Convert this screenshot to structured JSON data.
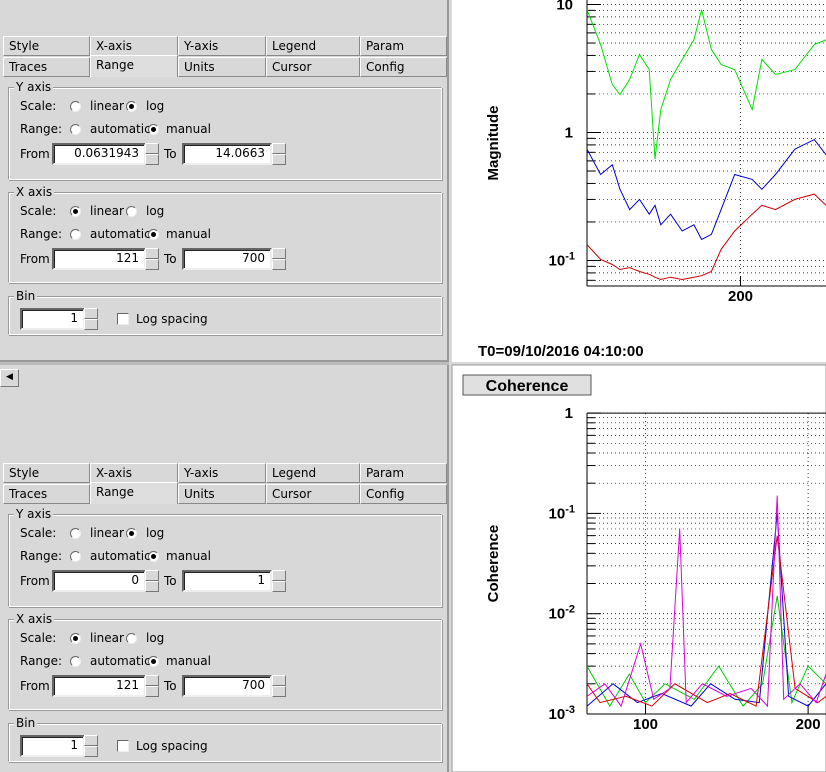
{
  "panels": [
    {
      "tabs": [
        [
          "Style",
          "X-axis",
          "Y-axis",
          "Legend",
          "Param"
        ],
        [
          "Traces",
          "Range",
          "Units",
          "Cursor",
          "Config"
        ]
      ],
      "selected_tab": [
        1,
        1
      ],
      "y_axis": {
        "title": "Y axis",
        "scale_label": "Scale:",
        "scale_options": [
          "linear",
          "log"
        ],
        "scale_checked": 1,
        "range_label": "Range:",
        "range_options": [
          "automatic",
          "manual"
        ],
        "range_checked": 1,
        "from_label": "From",
        "from": 0.0631943,
        "to_label": "To",
        "to": 14.0663
      },
      "x_axis": {
        "title": "X axis",
        "scale_label": "Scale:",
        "scale_options": [
          "linear",
          "log"
        ],
        "scale_checked": 0,
        "range_label": "Range:",
        "range_options": [
          "automatic",
          "manual"
        ],
        "range_checked": 1,
        "from_label": "From",
        "from": 121,
        "to_label": "To",
        "to": 700
      },
      "bin": {
        "title": "Bin",
        "value": 1,
        "log_spacing": "Log spacing"
      }
    },
    {
      "tabs": [
        [
          "Style",
          "X-axis",
          "Y-axis",
          "Legend",
          "Param"
        ],
        [
          "Traces",
          "Range",
          "Units",
          "Cursor",
          "Config"
        ]
      ],
      "selected_tab": [
        1,
        1
      ],
      "y_axis": {
        "title": "Y axis",
        "scale_label": "Scale:",
        "scale_options": [
          "linear",
          "log"
        ],
        "scale_checked": 1,
        "range_label": "Range:",
        "range_options": [
          "automatic",
          "manual"
        ],
        "range_checked": 1,
        "from_label": "From",
        "from": 0,
        "to_label": "To",
        "to": 1
      },
      "x_axis": {
        "title": "X axis",
        "scale_label": "Scale:",
        "scale_options": [
          "linear",
          "log"
        ],
        "scale_checked": 0,
        "range_label": "Range:",
        "range_options": [
          "automatic",
          "manual"
        ],
        "range_checked": 1,
        "from_label": "From",
        "from": 121,
        "to_label": "To",
        "to": 700
      },
      "bin": {
        "title": "Bin",
        "value": 1,
        "log_spacing": "Log spacing"
      }
    }
  ],
  "plots": [
    {
      "type": "line",
      "ylabel": "Magnitude",
      "footer": "T0=09/10/2016 04:10:00",
      "log_y": true,
      "grid": true,
      "xlim": [
        121,
        244
      ],
      "ylim": [
        0.0631943,
        14.0663
      ],
      "xticks": [
        200
      ],
      "yticks": [
        {
          "value": 10,
          "label": "10"
        },
        {
          "value": 1,
          "label": "1"
        },
        {
          "value": 0.1,
          "label": "10",
          "exponent": "-1"
        }
      ],
      "x": [
        121,
        128,
        134,
        138,
        143,
        148,
        153,
        156,
        159,
        164,
        170,
        176,
        180,
        185,
        190,
        197,
        206,
        211,
        218,
        228,
        238,
        244
      ],
      "series": [
        {
          "color": "#00e000",
          "values": [
            9.1,
            4.87,
            2.37,
            1.98,
            2.6,
            4.07,
            3.1,
            0.62,
            1.51,
            2.6,
            3.72,
            5.3,
            9.1,
            4.45,
            3.4,
            3.1,
            1.51,
            3.72,
            2.84,
            3.1,
            4.87,
            5.3
          ]
        },
        {
          "color": "#0000cc",
          "values": [
            0.74,
            0.47,
            0.56,
            0.36,
            0.25,
            0.3,
            0.23,
            0.27,
            0.19,
            0.23,
            0.17,
            0.19,
            0.146,
            0.16,
            0.25,
            0.47,
            0.43,
            0.36,
            0.47,
            0.74,
            0.88,
            0.67
          ]
        },
        {
          "color": "#cc0000",
          "values": [
            0.133,
            0.102,
            0.093,
            0.085,
            0.088,
            0.082,
            0.078,
            0.074,
            0.071,
            0.074,
            0.071,
            0.074,
            0.076,
            0.082,
            0.122,
            0.17,
            0.23,
            0.27,
            0.25,
            0.3,
            0.33,
            0.27
          ]
        }
      ]
    },
    {
      "type": "scatter-line",
      "title": "Coherence",
      "ylabel": "Coherence",
      "log_y": true,
      "grid": true,
      "xlim": [
        64,
        211
      ],
      "ylim": [
        0.001,
        1
      ],
      "xticks": [
        100,
        200
      ],
      "yticks": [
        {
          "value": 1,
          "label": "1"
        },
        {
          "value": 0.1,
          "label": "10",
          "exponent": "-1"
        },
        {
          "value": 0.01,
          "label": "10",
          "exponent": "-2"
        },
        {
          "value": 0.001,
          "label": "10",
          "exponent": "-3"
        }
      ],
      "series": [
        {
          "color": "#00cc00",
          "x": [
            64,
            78,
            90,
            100,
            112,
            130,
            145,
            160,
            172,
            181,
            190,
            200,
            211
          ],
          "values": [
            0.003,
            0.0012,
            0.0025,
            0.0013,
            0.002,
            0.0014,
            0.003,
            0.0012,
            0.002,
            0.015,
            0.0013,
            0.003,
            0.002
          ]
        },
        {
          "color": "#0000dd",
          "x": [
            64,
            80,
            95,
            110,
            128,
            140,
            155,
            170,
            181,
            188,
            200,
            211
          ],
          "values": [
            0.0012,
            0.002,
            0.0013,
            0.0016,
            0.0012,
            0.002,
            0.0014,
            0.0013,
            0.1,
            0.0015,
            0.0012,
            0.002
          ]
        },
        {
          "color": "#dd0000",
          "x": [
            64,
            72,
            88,
            104,
            118,
            138,
            152,
            168,
            181,
            192,
            206,
            211
          ],
          "values": [
            0.002,
            0.0013,
            0.0015,
            0.0012,
            0.002,
            0.0013,
            0.0016,
            0.0012,
            0.06,
            0.0018,
            0.0013,
            0.0015
          ]
        },
        {
          "color": "#dd00dd",
          "x": [
            64,
            75,
            85,
            97,
            105,
            115,
            121,
            125,
            135,
            150,
            165,
            175,
            181,
            185,
            195,
            205,
            211
          ],
          "values": [
            0.0015,
            0.002,
            0.0012,
            0.005,
            0.0014,
            0.0018,
            0.07,
            0.0013,
            0.002,
            0.0015,
            0.0018,
            0.0012,
            0.15,
            0.0014,
            0.002,
            0.0013,
            0.0025
          ]
        }
      ]
    }
  ]
}
